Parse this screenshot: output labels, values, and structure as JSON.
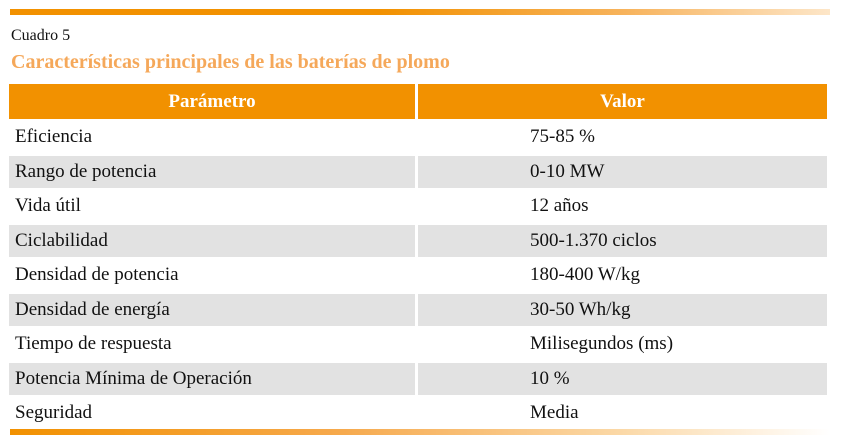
{
  "caption": "Cuadro 5",
  "title": "Características principales de las baterías de plomo",
  "headers": [
    "Parámetro",
    "Valor"
  ],
  "rows": [
    [
      "Eficiencia",
      "75-85 %"
    ],
    [
      "Rango de potencia",
      "0-10 MW"
    ],
    [
      "Vida útil",
      "12 años"
    ],
    [
      "Ciclabilidad",
      "500-1.370 ciclos"
    ],
    [
      "Densidad de potencia",
      "180-400 W/kg"
    ],
    [
      "Densidad de energía",
      "30-50 Wh/kg"
    ],
    [
      "Tiempo de respuesta",
      "Milisegundos (ms)"
    ],
    [
      "Potencia Mínima de Operación",
      "10 %"
    ],
    [
      "Seguridad",
      "Media"
    ]
  ],
  "colors": {
    "accent": "#f29100",
    "title": "#f5a85a",
    "row_alt": "#e2e2e2"
  }
}
